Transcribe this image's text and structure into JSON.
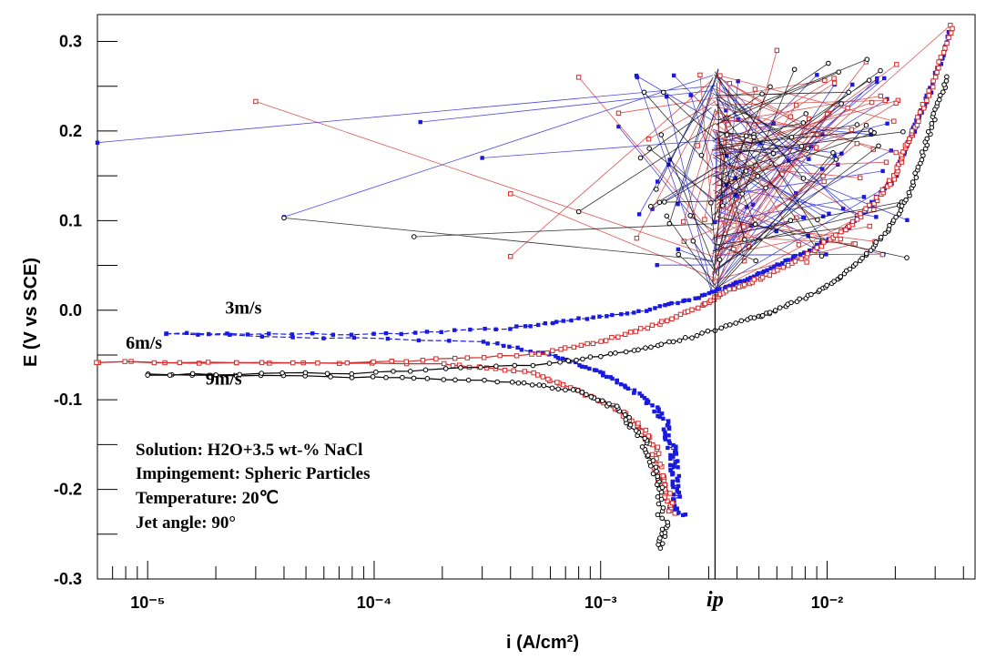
{
  "chart_data": {
    "type": "line",
    "title": "",
    "xlabel": "i (A/cm²)",
    "ylabel": "E (V vs SCE)",
    "xscale": "log",
    "xlim": [
      6e-06,
      0.045
    ],
    "ylim": [
      -0.3,
      0.33
    ],
    "x_ticks": [
      {
        "value": 1e-05,
        "label": "10⁻⁵"
      },
      {
        "value": 0.0001,
        "label": "10⁻⁴"
      },
      {
        "value": 0.001,
        "label": "10⁻³"
      },
      {
        "value": 0.01,
        "label": "10⁻²"
      }
    ],
    "y_ticks": [
      {
        "value": 0.3,
        "label": "0.3"
      },
      {
        "value": 0.2,
        "label": "0.2"
      },
      {
        "value": 0.1,
        "label": "0.1"
      },
      {
        "value": 0.0,
        "label": "0.0"
      },
      {
        "value": -0.1,
        "label": "-0.1"
      },
      {
        "value": -0.2,
        "label": "-0.2"
      },
      {
        "value": -0.3,
        "label": "-0.3"
      }
    ],
    "series": [
      {
        "name": "3m/s",
        "color": "#1a1adf",
        "marker": "filled-square",
        "cathodic": [
          [
            0.0023,
            -0.228
          ],
          [
            0.0021,
            -0.22
          ],
          [
            0.0022,
            -0.2
          ],
          [
            0.0021,
            -0.18
          ],
          [
            0.0021,
            -0.16
          ],
          [
            0.002,
            -0.14
          ],
          [
            0.0019,
            -0.12
          ],
          [
            0.0016,
            -0.1
          ],
          [
            0.0012,
            -0.08
          ],
          [
            0.0009,
            -0.065
          ],
          [
            0.0006,
            -0.05
          ],
          [
            0.0003,
            -0.035
          ],
          [
            1.2e-05,
            -0.026
          ]
        ],
        "anodic": [
          [
            1.2e-05,
            -0.026
          ],
          [
            0.0001,
            -0.027
          ],
          [
            0.0004,
            -0.02
          ],
          [
            0.0008,
            -0.01
          ],
          [
            0.0016,
            0.0
          ],
          [
            0.0025,
            0.012
          ],
          [
            0.0035,
            0.025
          ],
          [
            0.0045,
            0.035
          ],
          [
            0.006,
            0.05
          ],
          [
            0.008,
            0.065
          ],
          [
            0.012,
            0.09
          ],
          [
            0.016,
            0.12
          ],
          [
            0.02,
            0.15
          ],
          [
            0.022,
            0.18
          ],
          [
            0.024,
            0.2
          ],
          [
            0.026,
            0.22
          ],
          [
            0.03,
            0.26
          ],
          [
            0.035,
            0.31
          ]
        ]
      },
      {
        "name": "6m/s",
        "color": "#d42a2a",
        "marker": "open-square",
        "cathodic": [
          [
            0.0021,
            -0.226
          ],
          [
            0.0019,
            -0.2
          ],
          [
            0.0018,
            -0.18
          ],
          [
            0.0017,
            -0.15
          ],
          [
            0.0015,
            -0.13
          ],
          [
            0.0012,
            -0.11
          ],
          [
            0.0008,
            -0.09
          ],
          [
            0.0005,
            -0.07
          ],
          [
            0.0002,
            -0.06
          ],
          [
            6e-06,
            -0.058
          ]
        ],
        "anodic": [
          [
            6e-06,
            -0.058
          ],
          [
            0.0001,
            -0.058
          ],
          [
            0.0005,
            -0.05
          ],
          [
            0.001,
            -0.035
          ],
          [
            0.0018,
            -0.015
          ],
          [
            0.0028,
            0.005
          ],
          [
            0.0035,
            0.02
          ],
          [
            0.005,
            0.035
          ],
          [
            0.008,
            0.06
          ],
          [
            0.012,
            0.09
          ],
          [
            0.016,
            0.12
          ],
          [
            0.02,
            0.15
          ],
          [
            0.022,
            0.18
          ],
          [
            0.025,
            0.21
          ],
          [
            0.03,
            0.26
          ],
          [
            0.036,
            0.315
          ]
        ]
      },
      {
        "name": "9m/s",
        "color": "#000000",
        "marker": "open-circle",
        "cathodic": [
          [
            0.0018,
            -0.265
          ],
          [
            0.0019,
            -0.24
          ],
          [
            0.0018,
            -0.2
          ],
          [
            0.0017,
            -0.17
          ],
          [
            0.0015,
            -0.14
          ],
          [
            0.0012,
            -0.11
          ],
          [
            0.0008,
            -0.09
          ],
          [
            0.0004,
            -0.08
          ],
          [
            0.0001,
            -0.075
          ],
          [
            1e-05,
            -0.072
          ]
        ],
        "anodic": [
          [
            1e-05,
            -0.072
          ],
          [
            0.0001,
            -0.07
          ],
          [
            0.0006,
            -0.06
          ],
          [
            0.0014,
            -0.045
          ],
          [
            0.0025,
            -0.03
          ],
          [
            0.0045,
            -0.01
          ],
          [
            0.006,
            0.0
          ],
          [
            0.009,
            0.02
          ],
          [
            0.012,
            0.04
          ],
          [
            0.016,
            0.07
          ],
          [
            0.02,
            0.1
          ],
          [
            0.024,
            0.14
          ],
          [
            0.027,
            0.18
          ],
          [
            0.03,
            0.22
          ],
          [
            0.034,
            0.26
          ]
        ]
      }
    ],
    "scatter_bursts": [
      {
        "color": "#1a1adf",
        "far_points": [
          [
            6e-06,
            0.187
          ],
          [
            0.00016,
            0.21
          ],
          [
            4e-05,
            0.104
          ],
          [
            0.0003,
            0.17
          ],
          [
            0.0012,
            0.205
          ],
          [
            0.0025,
            0.24
          ]
        ]
      },
      {
        "color": "#d42a2a",
        "far_points": [
          [
            3e-05,
            0.233
          ],
          [
            0.0004,
            0.06
          ],
          [
            0.0004,
            0.13
          ],
          [
            0.0008,
            0.26
          ],
          [
            0.0012,
            0.22
          ],
          [
            0.035,
            0.318
          ],
          [
            0.006,
            0.29
          ]
        ]
      },
      {
        "color": "#000000",
        "far_points": [
          [
            4e-05,
            0.103
          ],
          [
            0.00015,
            0.082
          ],
          [
            0.0008,
            0.11
          ],
          [
            0.0015,
            0.17
          ],
          [
            0.015,
            0.28
          ]
        ]
      }
    ],
    "annotations": [
      {
        "text": "3m/s",
        "x": 2.2e-05,
        "y": -0.004
      },
      {
        "text": "6m/s",
        "x": 8e-06,
        "y": -0.043
      },
      {
        "text": "9m/s",
        "x": 1.8e-05,
        "y": -0.083
      }
    ],
    "ip": {
      "label": "ip",
      "x": 0.0032,
      "y_top": 0.02,
      "y_bottom": -0.3
    }
  },
  "info_box": [
    "Solution: H2O+3.5 wt-% NaCl",
    "Impingement: Spheric Particles",
    "Temperature: 20℃",
    "Jet angle: 90°"
  ]
}
